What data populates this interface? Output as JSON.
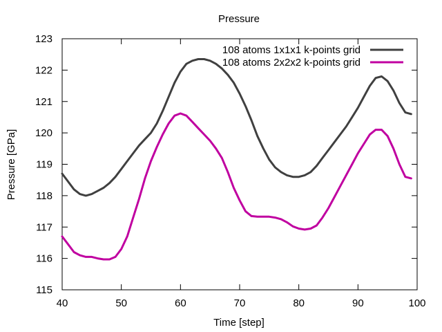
{
  "chart_data": {
    "type": "line",
    "title": "Pressure",
    "xlabel": "Time [step]",
    "ylabel": "Pressure [GPa]",
    "xlim": [
      40,
      100
    ],
    "ylim": [
      115,
      123
    ],
    "xticks": [
      40,
      50,
      60,
      70,
      80,
      90,
      100
    ],
    "yticks": [
      115,
      116,
      117,
      118,
      119,
      120,
      121,
      122,
      123
    ],
    "grid": false,
    "legend_position": "top-right",
    "series": [
      {
        "name": "108 atoms 1x1x1 k-points grid",
        "color": "#404040",
        "x": [
          40,
          41,
          42,
          43,
          44,
          45,
          46,
          47,
          48,
          49,
          50,
          51,
          52,
          53,
          54,
          55,
          56,
          57,
          58,
          59,
          60,
          61,
          62,
          63,
          64,
          65,
          66,
          67,
          68,
          69,
          70,
          71,
          72,
          73,
          74,
          75,
          76,
          77,
          78,
          79,
          80,
          81,
          82,
          83,
          84,
          85,
          86,
          87,
          88,
          89,
          90,
          91,
          92,
          93,
          94,
          95,
          96,
          97,
          98,
          99
        ],
        "y": [
          118.7,
          118.45,
          118.2,
          118.05,
          118.0,
          118.05,
          118.15,
          118.25,
          118.4,
          118.6,
          118.85,
          119.1,
          119.35,
          119.6,
          119.8,
          120.0,
          120.3,
          120.7,
          121.15,
          121.6,
          121.95,
          122.2,
          122.3,
          122.35,
          122.35,
          122.3,
          122.2,
          122.05,
          121.85,
          121.6,
          121.25,
          120.85,
          120.4,
          119.9,
          119.5,
          119.15,
          118.9,
          118.75,
          118.65,
          118.6,
          118.6,
          118.65,
          118.75,
          118.95,
          119.2,
          119.45,
          119.7,
          119.95,
          120.2,
          120.5,
          120.8,
          121.15,
          121.5,
          121.75,
          121.8,
          121.65,
          121.35,
          120.95,
          120.65,
          120.6
        ]
      },
      {
        "name": "108 atoms 2x2x2 k-points grid",
        "color": "#c000a0",
        "x": [
          40,
          41,
          42,
          43,
          44,
          45,
          46,
          47,
          48,
          49,
          50,
          51,
          52,
          53,
          54,
          55,
          56,
          57,
          58,
          59,
          60,
          61,
          62,
          63,
          64,
          65,
          66,
          67,
          68,
          69,
          70,
          71,
          72,
          73,
          74,
          75,
          76,
          77,
          78,
          79,
          80,
          81,
          82,
          83,
          84,
          85,
          86,
          87,
          88,
          89,
          90,
          91,
          92,
          93,
          94,
          95,
          96,
          97,
          98,
          99
        ],
        "y": [
          116.7,
          116.45,
          116.2,
          116.1,
          116.05,
          116.05,
          116.0,
          115.97,
          115.97,
          116.05,
          116.3,
          116.7,
          117.3,
          117.9,
          118.55,
          119.1,
          119.55,
          119.95,
          120.3,
          120.55,
          120.62,
          120.55,
          120.35,
          120.15,
          119.95,
          119.75,
          119.5,
          119.2,
          118.75,
          118.25,
          117.85,
          117.5,
          117.35,
          117.33,
          117.33,
          117.33,
          117.3,
          117.25,
          117.15,
          117.02,
          116.95,
          116.92,
          116.95,
          117.05,
          117.3,
          117.6,
          117.95,
          118.3,
          118.65,
          119.0,
          119.35,
          119.65,
          119.95,
          120.1,
          120.1,
          119.9,
          119.5,
          119.0,
          118.6,
          118.55
        ]
      }
    ]
  }
}
